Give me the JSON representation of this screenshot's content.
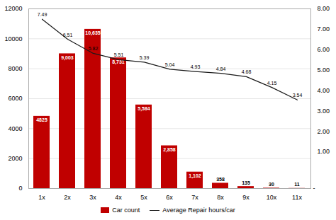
{
  "chart_data": {
    "type": "bar",
    "categories": [
      "1x",
      "2x",
      "3x",
      "4x",
      "5x",
      "6x",
      "7x",
      "8x",
      "9x",
      "10x",
      "11x"
    ],
    "series": [
      {
        "name": "Car count",
        "type": "bar",
        "color": "#c00000",
        "values": [
          4825,
          9003,
          10635,
          8731,
          5584,
          2858,
          1102,
          358,
          135,
          30,
          11
        ],
        "value_labels": [
          "4825",
          "9,003",
          "10,635",
          "8,731",
          "5,584",
          "2,858",
          "1,102",
          "358",
          "135",
          "30",
          "11"
        ]
      },
      {
        "name": "Average Repair hours/car",
        "type": "line",
        "axis": "y2",
        "color": "#1a1a1a",
        "values": [
          7.49,
          6.51,
          5.82,
          5.51,
          5.39,
          5.04,
          4.93,
          4.84,
          4.68,
          4.15,
          3.54
        ]
      }
    ],
    "data_labels": true,
    "ylim": [
      0,
      12000
    ],
    "yticks": [
      0,
      2000,
      4000,
      6000,
      8000,
      10000,
      12000
    ],
    "y2lim": [
      -0.8,
      8.0
    ],
    "y2ticks": [
      {
        "value": 1,
        "label": "1.00"
      },
      {
        "value": 2,
        "label": "2.00"
      },
      {
        "value": 3,
        "label": "3.00"
      },
      {
        "value": 4,
        "label": "4.00"
      },
      {
        "value": 5,
        "label": "5.00"
      },
      {
        "value": 6,
        "label": "6.00"
      },
      {
        "value": 7,
        "label": "7.00"
      },
      {
        "value": 8,
        "label": "8.00"
      }
    ],
    "grid": true,
    "legend": "bottom",
    "annotations": [
      {
        "text": "-",
        "y": -0.8,
        "axis": "y2"
      }
    ]
  }
}
